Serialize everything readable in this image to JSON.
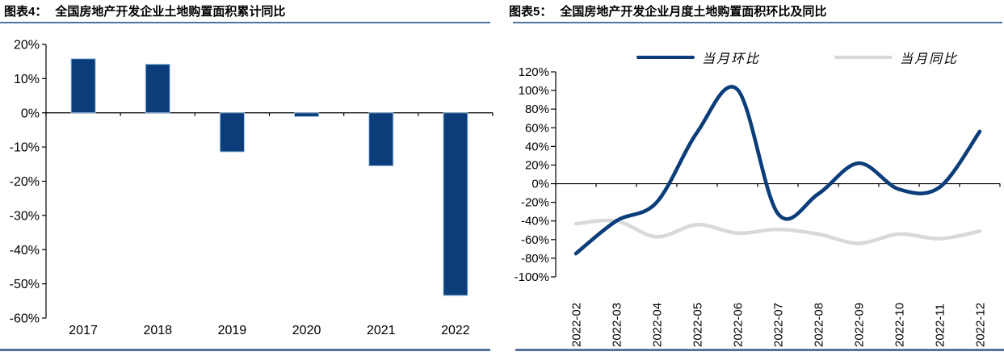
{
  "colors": {
    "navy": "#0a3d7a",
    "bar_edge_highlight": "#9dc3e6",
    "gray_series": "#d9d9d9",
    "steel_rule": "#54749e",
    "axis": "#000000"
  },
  "panels": [
    {
      "figure_label": "图表4：",
      "chart_data": {
        "type": "bar",
        "title": "全国房地产开发企业土地购置面积累计同比",
        "categories": [
          "2017",
          "2018",
          "2019",
          "2020",
          "2021",
          "2022"
        ],
        "values": [
          15.8,
          14.2,
          -11.4,
          -1.1,
          -15.5,
          -53.4
        ],
        "unit": "%",
        "xlabel": "",
        "ylabel": "",
        "ylim": [
          -60,
          20
        ],
        "ytick_step": 10,
        "grid": false,
        "bar_color": "#0a3d7a",
        "bar_edge": "#9dc3e6"
      }
    },
    {
      "figure_label": "图表5：",
      "chart_data": {
        "type": "line",
        "title": "全国房地产开发企业月度土地购置面积环比及同比",
        "x": [
          "2022-02",
          "2022-03",
          "2022-04",
          "2022-05",
          "2022-06",
          "2022-07",
          "2022-08",
          "2022-09",
          "2022-10",
          "2022-11",
          "2022-12"
        ],
        "series": [
          {
            "name": "当月环比",
            "color": "#0a3d7a",
            "values": [
              -75,
              -40,
              -20,
              55,
              101,
              -32,
              -11,
              22,
              -6,
              -4,
              56
            ]
          },
          {
            "name": "当月同比",
            "color": "#d9d9d9",
            "values": [
              -43,
              -40,
              -57,
              -44,
              -53,
              -49,
              -54,
              -64,
              -54,
              -59,
              -51
            ]
          }
        ],
        "unit": "%",
        "xlabel": "",
        "ylabel": "",
        "ylim": [
          -100,
          120
        ],
        "ytick_step": 20,
        "grid": false,
        "legend_position": "top"
      }
    }
  ]
}
